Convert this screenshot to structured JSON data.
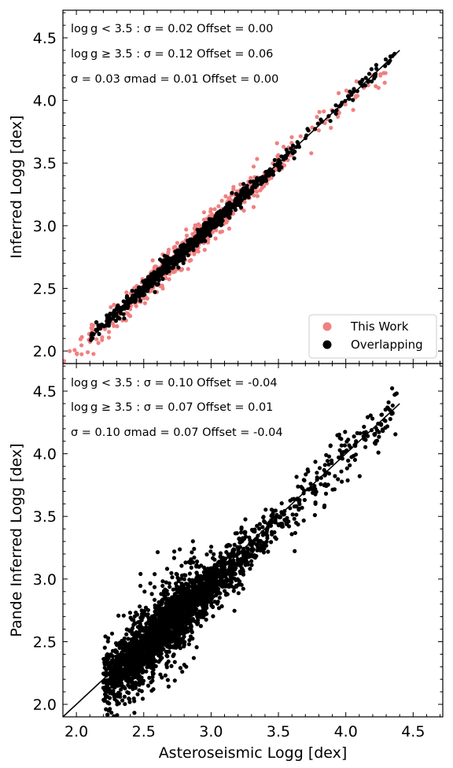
{
  "chart_data": [
    {
      "type": "scatter",
      "panel": "top",
      "xlabel": "",
      "ylabel": "Inferred Logg [dex]",
      "xlim": [
        1.9,
        4.72
      ],
      "ylim": [
        1.9,
        4.72
      ],
      "xticks": [
        "2.0",
        "2.5",
        "3.0",
        "3.5",
        "4.0",
        "4.5"
      ],
      "yticks": [
        "2.0",
        "2.5",
        "3.0",
        "3.5",
        "4.0",
        "4.5"
      ],
      "annotations": [
        "log g < 3.5 : σ = 0.02 Offset = 0.00",
        "log g ≥ 3.5 : σ = 0.12 Offset = 0.06",
        "σ = 0.03 σmad = 0.01 Offset = 0.00"
      ],
      "legend": {
        "placement": "lower right",
        "entries": [
          "This Work",
          "Overlapping"
        ]
      },
      "series": [
        {
          "name": "This Work",
          "color": "#f08080",
          "x_range": [
            1.9,
            4.35
          ],
          "trend": "y = x",
          "scatter_sd": 0.06
        },
        {
          "name": "Overlapping",
          "color": "#000000",
          "x_range": [
            2.1,
            4.38
          ],
          "trend": "y = x",
          "scatter_sd": 0.03
        }
      ],
      "one_to_one_line": {
        "x": [
          2.1,
          4.4
        ],
        "y": [
          2.1,
          4.4
        ]
      }
    },
    {
      "type": "scatter",
      "panel": "bottom",
      "xlabel": "Asteroseismic Logg [dex]",
      "ylabel": "Pande Inferred Logg [dex]",
      "xlim": [
        1.9,
        4.72
      ],
      "ylim": [
        1.9,
        4.72
      ],
      "xticks": [
        "2.0",
        "2.5",
        "3.0",
        "3.5",
        "4.0",
        "4.5"
      ],
      "yticks": [
        "2.0",
        "2.5",
        "3.0",
        "3.5",
        "4.0",
        "4.5"
      ],
      "annotations": [
        "log g < 3.5 : σ = 0.10 Offset = -0.04",
        "log g ≥ 3.5 : σ = 0.07 Offset = 0.01",
        "σ = 0.10 σmad = 0.07 Offset = -0.04"
      ],
      "series": [
        {
          "name": "",
          "color": "#000000",
          "x_range": [
            2.2,
            4.38
          ],
          "trend": "y = x - 0.04",
          "scatter_sd": 0.1
        }
      ],
      "one_to_one_line": {
        "x": [
          1.9,
          4.4
        ],
        "y": [
          1.9,
          4.4
        ]
      }
    }
  ]
}
